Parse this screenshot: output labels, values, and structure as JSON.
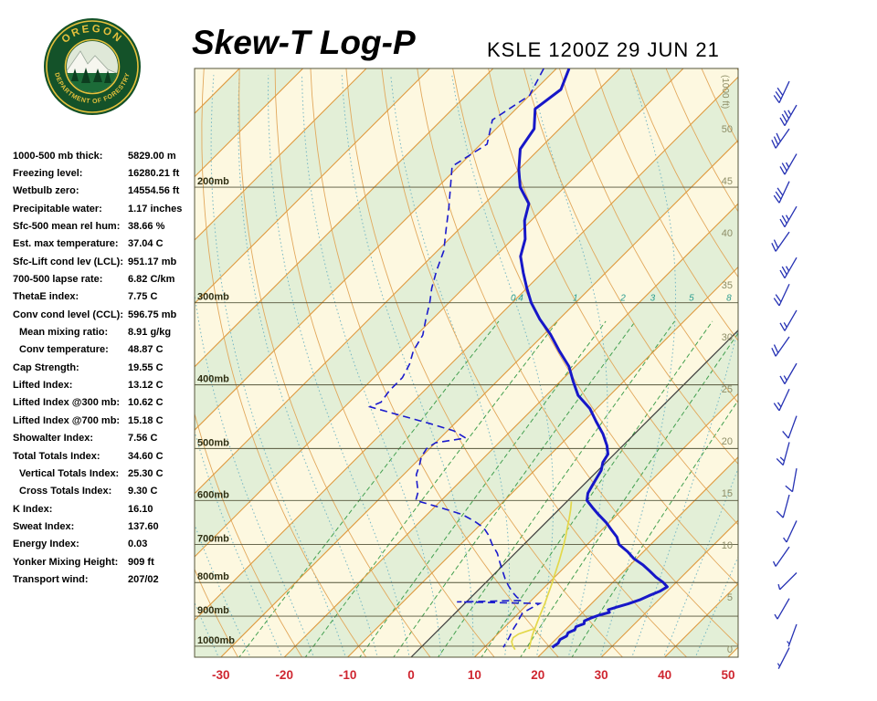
{
  "header": {
    "title": "Skew-T Log-P",
    "station": "KSLE 1200Z 29 JUN 21"
  },
  "logo": {
    "top_text": "OREGON",
    "bottom_text": "DEPARTMENT OF FORESTRY"
  },
  "indices": [
    {
      "label": "1000-500 mb thick:",
      "value": "5829.00 m",
      "indent": 0
    },
    {
      "label": "Freezing level:",
      "value": "16280.21 ft",
      "indent": 0
    },
    {
      "label": "Wetbulb zero:",
      "value": "14554.56 ft",
      "indent": 0
    },
    {
      "label": "Precipitable water:",
      "value": "1.17 inches",
      "indent": 0
    },
    {
      "label": "Sfc-500 mean rel hum:",
      "value": "38.66 %",
      "indent": 0
    },
    {
      "label": "Est. max temperature:",
      "value": "37.04 C",
      "indent": 0
    },
    {
      "label": "Sfc-Lift cond lev (LCL):",
      "value": "951.17 mb",
      "indent": 0
    },
    {
      "label": "700-500 lapse rate:",
      "value": "6.82 C/km",
      "indent": 0
    },
    {
      "label": "ThetaE index:",
      "value": "7.75 C",
      "indent": 0
    },
    {
      "label": "Conv cond level (CCL):",
      "value": "596.75 mb",
      "indent": 0
    },
    {
      "label": "Mean mixing ratio:",
      "value": "8.91 g/kg",
      "indent": 1
    },
    {
      "label": "Conv temperature:",
      "value": "48.87 C",
      "indent": 1
    },
    {
      "label": "Cap Strength:",
      "value": "19.55 C",
      "indent": 0
    },
    {
      "label": "Lifted Index:",
      "value": "13.12 C",
      "indent": 0
    },
    {
      "label": "Lifted Index @300 mb:",
      "value": "10.62 C",
      "indent": 0
    },
    {
      "label": "Lifted Index @700 mb:",
      "value": "15.18 C",
      "indent": 0
    },
    {
      "label": "Showalter Index:",
      "value": "7.56 C",
      "indent": 0
    },
    {
      "label": "Total Totals Index:",
      "value": "34.60 C",
      "indent": 0
    },
    {
      "label": "Vertical Totals Index:",
      "value": "25.30 C",
      "indent": 1
    },
    {
      "label": "Cross Totals Index:",
      "value": "9.30 C",
      "indent": 1
    },
    {
      "label": "K Index:",
      "value": "16.10",
      "indent": 0
    },
    {
      "label": "Sweat Index:",
      "value": "137.60",
      "indent": 0
    },
    {
      "label": "Energy Index:",
      "value": "0.03",
      "indent": 0
    },
    {
      "label": "Yonker Mixing Height:",
      "value": "909 ft",
      "indent": 0
    },
    {
      "label": "Transport wind:",
      "value": "207/02",
      "indent": 0
    }
  ],
  "chart_data": {
    "type": "skewt-logp",
    "title": "Skew-T Log-P",
    "station_line": "KSLE 1200Z 29 JUN 21",
    "pressure_levels_mb": [
      200,
      300,
      400,
      500,
      600,
      700,
      800,
      900,
      1000
    ],
    "pressure_label_suffix": "mb",
    "pressure_range_mb": [
      132,
      1040
    ],
    "temp_ticks_c": [
      -30,
      -20,
      -10,
      0,
      10,
      20,
      30,
      40,
      50
    ],
    "temp_unit": "C",
    "skew_deg": 45,
    "isotherm_step_c": 10,
    "height_axis_title": "(1000 ft)",
    "height_ticks_kft": [
      50,
      45,
      40,
      35,
      30,
      25,
      20,
      15,
      10,
      5,
      0
    ],
    "mixing_ratio_labeled_g_kg": [
      0.4,
      1,
      2,
      3,
      5,
      8
    ],
    "mixing_ratio_unlabeled_g_kg": [
      12,
      20
    ],
    "temperature_profile_p_t": [
      [
        132,
        -68
      ],
      [
        142,
        -66
      ],
      [
        152,
        -67
      ],
      [
        163,
        -64
      ],
      [
        175,
        -63
      ],
      [
        188,
        -60
      ],
      [
        200,
        -57
      ],
      [
        212,
        -53
      ],
      [
        225,
        -51
      ],
      [
        240,
        -48
      ],
      [
        255,
        -46
      ],
      [
        270,
        -43
      ],
      [
        285,
        -40
      ],
      [
        300,
        -37
      ],
      [
        318,
        -33
      ],
      [
        335,
        -29
      ],
      [
        355,
        -25
      ],
      [
        375,
        -21
      ],
      [
        395,
        -18
      ],
      [
        415,
        -15
      ],
      [
        435,
        -11
      ],
      [
        455,
        -8
      ],
      [
        475,
        -5
      ],
      [
        495,
        -2.5
      ],
      [
        510,
        -1
      ],
      [
        525,
        -0.5
      ],
      [
        540,
        0.5
      ],
      [
        555,
        1
      ],
      [
        570,
        1.5
      ],
      [
        585,
        2
      ],
      [
        600,
        3
      ],
      [
        615,
        5
      ],
      [
        630,
        7
      ],
      [
        648,
        9.5
      ],
      [
        665,
        11.5
      ],
      [
        682,
        13.5
      ],
      [
        700,
        15
      ],
      [
        718,
        17.5
      ],
      [
        735,
        19.5
      ],
      [
        752,
        22
      ],
      [
        768,
        24
      ],
      [
        785,
        26
      ],
      [
        800,
        28
      ],
      [
        812,
        29.3
      ],
      [
        825,
        28.8
      ],
      [
        838,
        27.8
      ],
      [
        850,
        27
      ],
      [
        862,
        25.8
      ],
      [
        872,
        24.5
      ],
      [
        880,
        23.6
      ],
      [
        888,
        24.2
      ],
      [
        897,
        23
      ],
      [
        906,
        22.2
      ],
      [
        915,
        21.6
      ],
      [
        924,
        22
      ],
      [
        934,
        21.2
      ],
      [
        944,
        21.5
      ],
      [
        954,
        20.9
      ],
      [
        965,
        21.2
      ],
      [
        977,
        20.7
      ],
      [
        990,
        21
      ],
      [
        1004,
        20.7
      ]
    ],
    "dewpoint_profile_p_t": [
      [
        132,
        -72
      ],
      [
        145,
        -70
      ],
      [
        158,
        -72
      ],
      [
        172,
        -69
      ],
      [
        186,
        -71
      ],
      [
        200,
        -68
      ],
      [
        215,
        -65
      ],
      [
        232,
        -62
      ],
      [
        250,
        -59
      ],
      [
        268,
        -57
      ],
      [
        285,
        -55
      ],
      [
        300,
        -53
      ],
      [
        318,
        -51
      ],
      [
        336,
        -49
      ],
      [
        355,
        -48
      ],
      [
        372,
        -46.5
      ],
      [
        390,
        -45.5
      ],
      [
        408,
        -45.5
      ],
      [
        425,
        -45
      ],
      [
        432,
        -46
      ],
      [
        445,
        -40
      ],
      [
        458,
        -34
      ],
      [
        470,
        -29
      ],
      [
        482,
        -26
      ],
      [
        490,
        -30
      ],
      [
        500,
        -30.5
      ],
      [
        515,
        -30
      ],
      [
        530,
        -29
      ],
      [
        548,
        -28
      ],
      [
        565,
        -26.5
      ],
      [
        582,
        -25
      ],
      [
        600,
        -24
      ],
      [
        615,
        -19
      ],
      [
        630,
        -14.5
      ],
      [
        645,
        -11.5
      ],
      [
        660,
        -9
      ],
      [
        678,
        -7
      ],
      [
        700,
        -5
      ],
      [
        722,
        -2.8
      ],
      [
        745,
        -1
      ],
      [
        768,
        0.8
      ],
      [
        790,
        2.5
      ],
      [
        808,
        4
      ],
      [
        825,
        5.5
      ],
      [
        842,
        7.2
      ],
      [
        852,
        8.5
      ],
      [
        856,
        -1.5
      ],
      [
        861,
        11.8
      ],
      [
        875,
        11.2
      ],
      [
        890,
        10.6
      ],
      [
        905,
        10.9
      ],
      [
        920,
        11.3
      ],
      [
        938,
        11.6
      ],
      [
        955,
        12
      ],
      [
        972,
        12.4
      ],
      [
        988,
        12.7
      ],
      [
        1004,
        13
      ]
    ],
    "parcel_path_p_t": [
      [
        1010,
        17.3
      ],
      [
        995,
        16.8
      ],
      [
        978,
        16.2
      ],
      [
        960,
        15.6
      ],
      [
        940,
        15
      ],
      [
        920,
        14.4
      ],
      [
        900,
        13.8
      ],
      [
        880,
        13.2
      ],
      [
        860,
        12.6
      ],
      [
        840,
        11.9
      ],
      [
        820,
        11.2
      ],
      [
        800,
        10.5
      ],
      [
        780,
        9.7
      ],
      [
        760,
        8.9
      ],
      [
        740,
        8.1
      ],
      [
        720,
        7.2
      ],
      [
        700,
        6.3
      ],
      [
        680,
        5.3
      ],
      [
        660,
        4.2
      ],
      [
        640,
        3.1
      ],
      [
        620,
        1.9
      ],
      [
        602,
        0.7
      ]
    ],
    "parcel_path2_p_t": [
      [
        1012,
        15.2
      ],
      [
        998,
        14.2
      ],
      [
        984,
        13.4
      ],
      [
        970,
        13
      ],
      [
        958,
        13.3
      ],
      [
        948,
        14.2
      ],
      [
        940,
        15
      ]
    ],
    "wind_barbs": [
      {
        "p": 138,
        "dir": 205,
        "spd_kt": 30
      },
      {
        "p": 150,
        "dir": 210,
        "spd_kt": 35
      },
      {
        "p": 163,
        "dir": 215,
        "spd_kt": 30
      },
      {
        "p": 178,
        "dir": 210,
        "spd_kt": 25
      },
      {
        "p": 196,
        "dir": 205,
        "spd_kt": 30
      },
      {
        "p": 214,
        "dir": 210,
        "spd_kt": 25
      },
      {
        "p": 234,
        "dir": 215,
        "spd_kt": 20
      },
      {
        "p": 256,
        "dir": 210,
        "spd_kt": 25
      },
      {
        "p": 281,
        "dir": 205,
        "spd_kt": 20
      },
      {
        "p": 308,
        "dir": 210,
        "spd_kt": 15
      },
      {
        "p": 338,
        "dir": 215,
        "spd_kt": 20
      },
      {
        "p": 371,
        "dir": 210,
        "spd_kt": 15
      },
      {
        "p": 406,
        "dir": 205,
        "spd_kt": 15
      },
      {
        "p": 446,
        "dir": 200,
        "spd_kt": 10
      },
      {
        "p": 489,
        "dir": 195,
        "spd_kt": 15
      },
      {
        "p": 536,
        "dir": 190,
        "spd_kt": 10
      },
      {
        "p": 588,
        "dir": 195,
        "spd_kt": 10
      },
      {
        "p": 644,
        "dir": 205,
        "spd_kt": 5
      },
      {
        "p": 706,
        "dir": 215,
        "spd_kt": 5
      },
      {
        "p": 773,
        "dir": 225,
        "spd_kt": 5
      },
      {
        "p": 846,
        "dir": 210,
        "spd_kt": 5
      },
      {
        "p": 926,
        "dir": 200,
        "spd_kt": 3
      },
      {
        "p": 1005,
        "dir": 207,
        "spd_kt": 2
      }
    ],
    "colors": {
      "background": "#fdf8e0",
      "band": "#e3efd7",
      "isotherm": "#df9a3f",
      "dry_adiabat": "#e2a85c",
      "moist_adiabat": "#74b6c4",
      "mixing_ratio": "#44a050",
      "mixing_label": "#2a9d8f",
      "zero_isotherm": "#3c3c3c",
      "pressure_line": "#55553a",
      "pressure_label": "#2e2e12",
      "temp_axis_label": "#cf2630",
      "height_label": "#8d8d66",
      "temperature": "#1717c8",
      "dewpoint": "#1a1acd",
      "parcel": "#e3d84a",
      "wind_barb": "#2632b4"
    }
  }
}
